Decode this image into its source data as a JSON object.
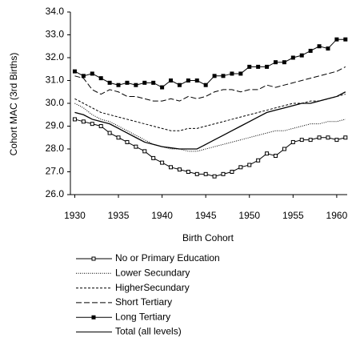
{
  "chart_data": {
    "type": "line",
    "x_label": "Birth Cohort",
    "y_label": "Cohort MAC (3rd Births)",
    "x": [
      1930,
      1931,
      1932,
      1933,
      1934,
      1935,
      1936,
      1937,
      1938,
      1939,
      1940,
      1941,
      1942,
      1943,
      1944,
      1945,
      1946,
      1947,
      1948,
      1949,
      1950,
      1951,
      1952,
      1953,
      1954,
      1955,
      1956,
      1957,
      1958,
      1959,
      1960,
      1961
    ],
    "xlim": [
      1929.5,
      1961.2
    ],
    "xticks": [
      1930,
      1935,
      1940,
      1945,
      1950,
      1955,
      1960
    ],
    "ylim": [
      26,
      34
    ],
    "yticks": [
      {
        "value": 26,
        "label": "26.0"
      },
      {
        "value": 27,
        "label": "27.0"
      },
      {
        "value": 28,
        "label": "28.0"
      },
      {
        "value": 29,
        "label": "29.0"
      },
      {
        "value": 30,
        "label": "30.0"
      },
      {
        "value": 31,
        "label": "31.0"
      },
      {
        "value": 32,
        "label": "32.0"
      },
      {
        "value": 33,
        "label": "33.0"
      },
      {
        "value": 34,
        "label": "34.0"
      }
    ],
    "legend": "bottom",
    "series": [
      {
        "name": "No or Primary Education",
        "color": "#000000",
        "dash": "solid",
        "marker": "open-square",
        "values": [
          29.3,
          29.2,
          29.1,
          29.0,
          28.7,
          28.5,
          28.3,
          28.1,
          27.9,
          27.6,
          27.4,
          27.2,
          27.1,
          27.0,
          26.9,
          26.9,
          26.8,
          26.9,
          27.0,
          27.2,
          27.3,
          27.5,
          27.8,
          27.7,
          28.0,
          28.3,
          28.4,
          28.4,
          28.5,
          28.5,
          28.4,
          28.5
        ]
      },
      {
        "name": "Lower Secundary",
        "color": "#000000",
        "dash": "dotted",
        "marker": "none",
        "values": [
          30.0,
          29.8,
          29.5,
          29.3,
          29.2,
          29.0,
          28.8,
          28.6,
          28.4,
          28.2,
          28.1,
          28.0,
          28.0,
          27.9,
          27.9,
          28.0,
          28.1,
          28.2,
          28.3,
          28.4,
          28.5,
          28.6,
          28.7,
          28.8,
          28.8,
          28.9,
          29.0,
          29.1,
          29.1,
          29.2,
          29.2,
          29.3
        ]
      },
      {
        "name": "HigherSecundary",
        "color": "#000000",
        "dash": "short-dash",
        "marker": "none",
        "values": [
          30.2,
          30.0,
          29.8,
          29.6,
          29.5,
          29.4,
          29.3,
          29.2,
          29.1,
          29.0,
          28.9,
          28.8,
          28.8,
          28.9,
          28.9,
          29.0,
          29.1,
          29.2,
          29.3,
          29.4,
          29.5,
          29.6,
          29.7,
          29.8,
          29.9,
          30.0,
          30.0,
          30.1,
          30.1,
          30.2,
          30.3,
          30.4
        ]
      },
      {
        "name": "Short Tertiary",
        "color": "#000000",
        "dash": "long-dash",
        "marker": "none",
        "values": [
          31.2,
          31.1,
          30.6,
          30.4,
          30.6,
          30.5,
          30.3,
          30.3,
          30.2,
          30.1,
          30.1,
          30.2,
          30.1,
          30.3,
          30.2,
          30.3,
          30.5,
          30.6,
          30.6,
          30.5,
          30.6,
          30.6,
          30.8,
          30.7,
          30.8,
          30.9,
          31.0,
          31.1,
          31.2,
          31.3,
          31.4,
          31.6
        ]
      },
      {
        "name": "Long Tertiary",
        "color": "#000000",
        "dash": "solid",
        "marker": "filled-square",
        "values": [
          31.4,
          31.2,
          31.3,
          31.1,
          30.9,
          30.8,
          30.9,
          30.8,
          30.9,
          30.9,
          30.7,
          31.0,
          30.8,
          31.0,
          31.0,
          30.8,
          31.2,
          31.2,
          31.3,
          31.3,
          31.6,
          31.6,
          31.6,
          31.8,
          31.8,
          32.0,
          32.1,
          32.3,
          32.5,
          32.4,
          32.8,
          32.8
        ]
      },
      {
        "name": "Total (all levels)",
        "color": "#000000",
        "dash": "solid",
        "marker": "none",
        "values": [
          29.6,
          29.5,
          29.3,
          29.2,
          29.1,
          28.9,
          28.7,
          28.5,
          28.3,
          28.2,
          28.1,
          28.05,
          28.0,
          28.0,
          28.0,
          28.2,
          28.4,
          28.6,
          28.8,
          29.0,
          29.2,
          29.4,
          29.6,
          29.7,
          29.8,
          29.9,
          30.0,
          30.0,
          30.1,
          30.2,
          30.3,
          30.5
        ]
      }
    ]
  }
}
